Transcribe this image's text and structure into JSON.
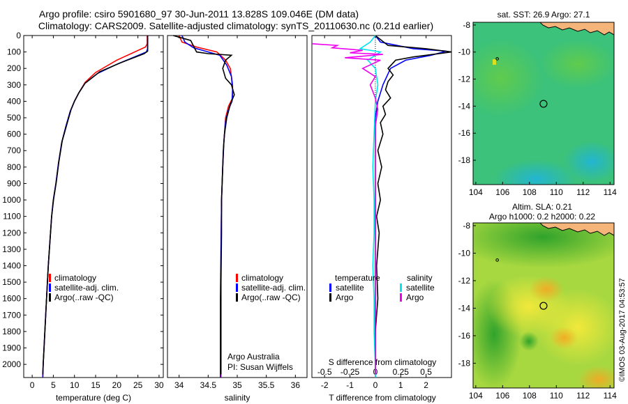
{
  "header": {
    "line1": "Argo profile: csiro 5901680_97 30-Jun-2011 13.828S 109.046E (DM data)",
    "line2": "Climatology: CARS2009. Satellite-adjusted climatology: synTS_20110630.nc (0.21d earlier)"
  },
  "colors": {
    "climatology": "#ff0000",
    "satellite": "#0000ff",
    "argo": "#000000",
    "salinity_satellite": "#00e5ee",
    "salinity_argo": "#ee00ee",
    "map_land": "#f4b47a"
  },
  "chart_data": [
    {
      "type": "line",
      "id": "temperature",
      "xlabel": "temperature (deg C)",
      "ylabel": "",
      "xlim": [
        -2,
        31
      ],
      "ylim": [
        2080,
        0
      ],
      "y_inverted": true,
      "xticks": [
        0,
        5,
        10,
        15,
        20,
        25,
        30
      ],
      "yticks": [
        0,
        100,
        200,
        300,
        400,
        500,
        600,
        700,
        800,
        900,
        1000,
        1100,
        1200,
        1300,
        1400,
        1500,
        1600,
        1700,
        1800,
        1900,
        2000
      ],
      "legend": [
        "climatology",
        "satellite-adj. clim.",
        "Argo(..raw -QC)"
      ],
      "series": [
        {
          "name": "climatology",
          "color": "#ff0000",
          "points": [
            [
              27.2,
              0
            ],
            [
              27.2,
              50
            ],
            [
              26.8,
              70
            ],
            [
              20,
              150
            ],
            [
              15,
              225
            ],
            [
              12.5,
              285
            ],
            [
              11,
              350
            ],
            [
              10,
              400
            ],
            [
              9,
              460
            ],
            [
              8,
              550
            ],
            [
              7,
              650
            ],
            [
              6.2,
              780
            ],
            [
              5.6,
              900
            ],
            [
              5,
              1000
            ],
            [
              4.6,
              1100
            ],
            [
              4.2,
              1250
            ],
            [
              3.8,
              1400
            ],
            [
              3.4,
              1600
            ],
            [
              3,
              1800
            ],
            [
              2.6,
              2000
            ],
            [
              2.5,
              2080
            ]
          ]
        },
        {
          "name": "satellite-adj. clim.",
          "color": "#0000ff",
          "points": [
            [
              27.3,
              0
            ],
            [
              27.3,
              80
            ],
            [
              27,
              100
            ],
            [
              20,
              175
            ],
            [
              15.5,
              230
            ],
            [
              12.5,
              290
            ],
            [
              11,
              350
            ],
            [
              10,
              400
            ],
            [
              9,
              460
            ],
            [
              8,
              550
            ],
            [
              7,
              650
            ],
            [
              6.2,
              780
            ],
            [
              5.6,
              900
            ],
            [
              5,
              1000
            ],
            [
              4.6,
              1100
            ],
            [
              4.2,
              1250
            ],
            [
              3.8,
              1400
            ],
            [
              3.4,
              1600
            ],
            [
              3,
              1800
            ],
            [
              2.6,
              2000
            ],
            [
              2.5,
              2080
            ]
          ]
        },
        {
          "name": "Argo(..raw -QC)",
          "color": "#000000",
          "points": [
            [
              27.3,
              0
            ],
            [
              27.3,
              95
            ],
            [
              26.5,
              110
            ],
            [
              21,
              165
            ],
            [
              16,
              220
            ],
            [
              12.5,
              290
            ],
            [
              11,
              350
            ],
            [
              10,
              400
            ],
            [
              9.2,
              450
            ],
            [
              8.2,
              540
            ],
            [
              7.1,
              640
            ],
            [
              6.3,
              770
            ],
            [
              5.7,
              890
            ],
            [
              5.1,
              990
            ],
            [
              4.6,
              1100
            ],
            [
              4.2,
              1250
            ],
            [
              3.8,
              1400
            ],
            [
              3.4,
              1600
            ],
            [
              3,
              1800
            ],
            [
              2.6,
              2000
            ],
            [
              2.5,
              2060
            ]
          ]
        }
      ]
    },
    {
      "type": "line",
      "id": "salinity",
      "xlabel": "salinity",
      "ylabel": "",
      "xlim": [
        33.8,
        36.2
      ],
      "ylim": [
        2080,
        0
      ],
      "y_inverted": true,
      "xticks": [
        34,
        34.5,
        35,
        35.5,
        36
      ],
      "legend": [
        "climatology",
        "satellite-adj. clim.",
        "Argo(..raw -QC)"
      ],
      "annotation": [
        "Argo Australia",
        "PI: Susan Wijffels"
      ],
      "series": [
        {
          "name": "climatology",
          "color": "#ff0000",
          "points": [
            [
              34.0,
              0
            ],
            [
              34.05,
              40
            ],
            [
              34.3,
              70
            ],
            [
              34.65,
              100
            ],
            [
              34.8,
              150
            ],
            [
              34.88,
              200
            ],
            [
              34.92,
              300
            ],
            [
              34.92,
              380
            ],
            [
              34.85,
              430
            ],
            [
              34.8,
              500
            ],
            [
              34.77,
              650
            ],
            [
              34.75,
              800
            ],
            [
              34.73,
              1000
            ],
            [
              34.72,
              1300
            ],
            [
              34.72,
              1600
            ],
            [
              34.72,
              1900
            ],
            [
              34.72,
              2080
            ]
          ]
        },
        {
          "name": "satellite-adj. clim.",
          "color": "#0000ff",
          "points": [
            [
              34.05,
              0
            ],
            [
              34.1,
              40
            ],
            [
              34.25,
              75
            ],
            [
              34.45,
              95
            ],
            [
              34.7,
              120
            ],
            [
              34.82,
              180
            ],
            [
              34.9,
              250
            ],
            [
              34.92,
              330
            ],
            [
              34.91,
              400
            ],
            [
              34.85,
              450
            ],
            [
              34.8,
              520
            ],
            [
              34.77,
              650
            ],
            [
              34.75,
              800
            ],
            [
              34.73,
              1000
            ],
            [
              34.72,
              1300
            ],
            [
              34.71,
              1600
            ],
            [
              34.71,
              1900
            ],
            [
              34.71,
              2080
            ]
          ]
        },
        {
          "name": "Argo(..raw -QC)",
          "color": "#000000",
          "points": [
            [
              33.9,
              0
            ],
            [
              34.2,
              30
            ],
            [
              34.3,
              100
            ],
            [
              34.5,
              110
            ],
            [
              34.9,
              120
            ],
            [
              34.8,
              150
            ],
            [
              34.75,
              200
            ],
            [
              34.8,
              260
            ],
            [
              34.9,
              300
            ],
            [
              34.95,
              360
            ],
            [
              34.88,
              420
            ],
            [
              34.82,
              500
            ],
            [
              34.78,
              600
            ],
            [
              34.76,
              700
            ],
            [
              34.75,
              800
            ],
            [
              34.73,
              1000
            ],
            [
              34.73,
              1200
            ],
            [
              34.72,
              1500
            ],
            [
              34.72,
              1800
            ],
            [
              34.72,
              2060
            ]
          ]
        }
      ]
    },
    {
      "type": "line",
      "id": "differences",
      "xlabel": "T difference from climatology",
      "xlabel_top": "S difference from climatology",
      "xlim": [
        -2.5,
        3
      ],
      "ylim": [
        2080,
        0
      ],
      "y_inverted": true,
      "xticks": [
        -2,
        -1,
        0,
        1,
        2
      ],
      "xticks_top": [
        -0.5,
        -0.25,
        0,
        0.25,
        0.5
      ],
      "legend_temperature": {
        "title": "temperature",
        "items": [
          "satellite",
          "Argo"
        ]
      },
      "legend_salinity": {
        "title": "salinity",
        "items": [
          "satellite",
          "Argo"
        ]
      },
      "series": [
        {
          "name": "temperature satellite",
          "color": "#0000ff",
          "points": [
            [
              0,
              0
            ],
            [
              0.2,
              40
            ],
            [
              1.5,
              80
            ],
            [
              2.8,
              95
            ],
            [
              2.2,
              120
            ],
            [
              1.2,
              150
            ],
            [
              0.6,
              200
            ],
            [
              0.3,
              300
            ],
            [
              0.1,
              400
            ],
            [
              0,
              500
            ],
            [
              0,
              800
            ],
            [
              0,
              1200
            ],
            [
              0,
              1600
            ],
            [
              0,
              2000
            ],
            [
              0,
              2080
            ]
          ]
        },
        {
          "name": "temperature Argo",
          "color": "#000000",
          "points": [
            [
              0,
              0
            ],
            [
              0.5,
              60
            ],
            [
              2,
              80
            ],
            [
              3,
              100
            ],
            [
              1.5,
              130
            ],
            [
              0.8,
              150
            ],
            [
              0.5,
              200
            ],
            [
              0.7,
              240
            ],
            [
              0.5,
              280
            ],
            [
              0.4,
              330
            ],
            [
              0.6,
              380
            ],
            [
              0.3,
              430
            ],
            [
              0.4,
              480
            ],
            [
              0.2,
              530
            ],
            [
              0.3,
              600
            ],
            [
              0.1,
              700
            ],
            [
              0.25,
              800
            ],
            [
              0.1,
              900
            ],
            [
              0.2,
              1000
            ],
            [
              0.05,
              1100
            ],
            [
              0.15,
              1200
            ],
            [
              0.05,
              1400
            ],
            [
              0.1,
              1600
            ],
            [
              0,
              1800
            ],
            [
              0,
              2000
            ],
            [
              0,
              2060
            ]
          ]
        },
        {
          "name": "salinity satellite",
          "color": "#00e5ee",
          "points": [
            [
              0,
              0
            ],
            [
              -0.2,
              40
            ],
            [
              -0.6,
              80
            ],
            [
              0.2,
              100
            ],
            [
              -0.3,
              150
            ],
            [
              0,
              200
            ],
            [
              0.1,
              300
            ],
            [
              0,
              400
            ],
            [
              -0.05,
              600
            ],
            [
              -0.1,
              800
            ],
            [
              -0.05,
              1000
            ],
            [
              -0.05,
              1200
            ],
            [
              -0.1,
              1400
            ],
            [
              -0.05,
              1600
            ],
            [
              -0.05,
              1800
            ],
            [
              0,
              2000
            ],
            [
              0,
              2080
            ]
          ]
        },
        {
          "name": "salinity Argo",
          "color": "#ee00ee",
          "points": [
            [
              -2.5,
              50
            ],
            [
              -1.5,
              60
            ],
            [
              -1.7,
              75
            ],
            [
              -0.5,
              90
            ],
            [
              -1,
              105
            ],
            [
              0.3,
              115
            ],
            [
              -1.2,
              135
            ],
            [
              0.2,
              150
            ],
            [
              -0.5,
              200
            ],
            [
              0,
              250
            ],
            [
              -0.2,
              300
            ],
            [
              0,
              380
            ],
            [
              0.1,
              450
            ],
            [
              0,
              550
            ],
            [
              0,
              700
            ],
            [
              0,
              900
            ],
            [
              0,
              1200
            ],
            [
              0,
              1500
            ],
            [
              0,
              1800
            ],
            [
              0,
              2060
            ]
          ]
        }
      ]
    },
    {
      "type": "heatmap",
      "id": "sst_map",
      "title": "sat. SST: 26.9 Argo: 27.1",
      "xticks": [
        104,
        106,
        108,
        110,
        112,
        114
      ],
      "yticks": [
        -8,
        -10,
        -12,
        -14,
        -16,
        -18
      ],
      "xlim": [
        103.8,
        114.3
      ],
      "ylim": [
        -19.8,
        -7.8
      ],
      "argo_position": [
        109.046,
        -13.828
      ]
    },
    {
      "type": "heatmap",
      "id": "sla_map",
      "title": "Altim. SLA: 0.21",
      "subtitle": "Argo h1000: 0.2 h2000: 0.22",
      "xticks": [
        104,
        106,
        108,
        110,
        112,
        114
      ],
      "yticks": [
        -8,
        -10,
        -12,
        -14,
        -16,
        -18
      ],
      "xlim": [
        103.8,
        114.3
      ],
      "ylim": [
        -19.8,
        -7.8
      ],
      "argo_position": [
        109.046,
        -13.828
      ]
    }
  ],
  "credit": "©IMOS 03-Aug-2017 04:53:57"
}
